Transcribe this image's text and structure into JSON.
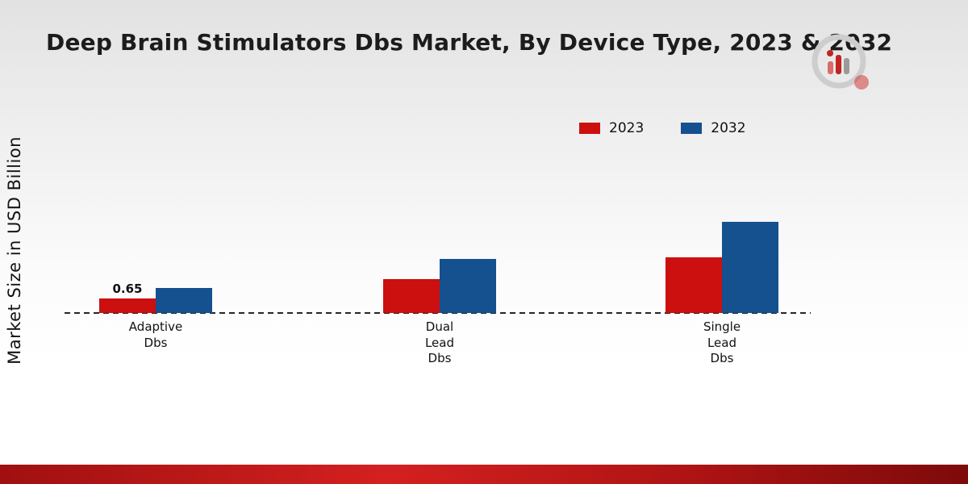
{
  "page": {
    "title": "Deep Brain Stimulators Dbs Market, By Device Type, 2023 & 2032",
    "y_axis_label": "Market Size in USD Billion"
  },
  "colors": {
    "series_2023": "#cc0f0f",
    "series_2032": "#15508f",
    "bottom_strip": "#b01414",
    "background_top": "#e2e2e2"
  },
  "logo": {
    "name": "market-research-logo"
  },
  "chart_data": {
    "type": "bar",
    "title": "Deep Brain Stimulators Dbs Market, By Device Type, 2023 & 2032",
    "xlabel": "",
    "ylabel": "Market Size in USD Billion",
    "categories": [
      "Adaptive\nDbs",
      "Dual\nLead\nDbs",
      "Single\nLead\nDbs"
    ],
    "series": [
      {
        "name": "2023",
        "color": "#cc0f0f",
        "values": [
          0.65,
          1.5,
          2.45
        ],
        "data_labels": [
          "0.65",
          null,
          null
        ]
      },
      {
        "name": "2032",
        "color": "#15508f",
        "values": [
          1.1,
          2.4,
          4.05
        ],
        "data_labels": [
          null,
          null,
          null
        ]
      }
    ],
    "ylim": [
      0,
      4.5
    ],
    "grid": false,
    "legend_position": "top-right",
    "baseline_style": "dashed",
    "axes_shown": false
  }
}
